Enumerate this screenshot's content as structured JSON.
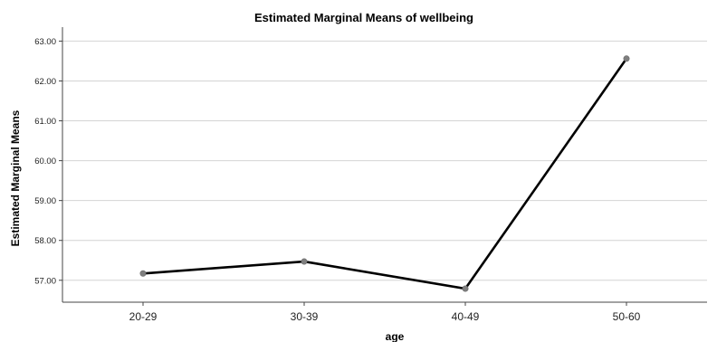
{
  "chart_data": {
    "type": "line",
    "title": "Estimated Marginal Means of wellbeing",
    "xlabel": "age",
    "ylabel": "Estimated Marginal Means",
    "categories": [
      "20-29",
      "30-39",
      "40-49",
      "50-60"
    ],
    "series": [
      {
        "values": [
          57.17,
          57.47,
          56.79,
          62.56
        ]
      }
    ],
    "ylim": [
      56.45,
      63.35
    ],
    "yticks": [
      "57.00",
      "58.00",
      "59.00",
      "60.00",
      "61.00",
      "62.00",
      "63.00"
    ],
    "grid": true,
    "legend": "none",
    "colors": {
      "line": "#000000",
      "marker": "#7f7f7f",
      "grid": "#d4d4d4"
    }
  }
}
